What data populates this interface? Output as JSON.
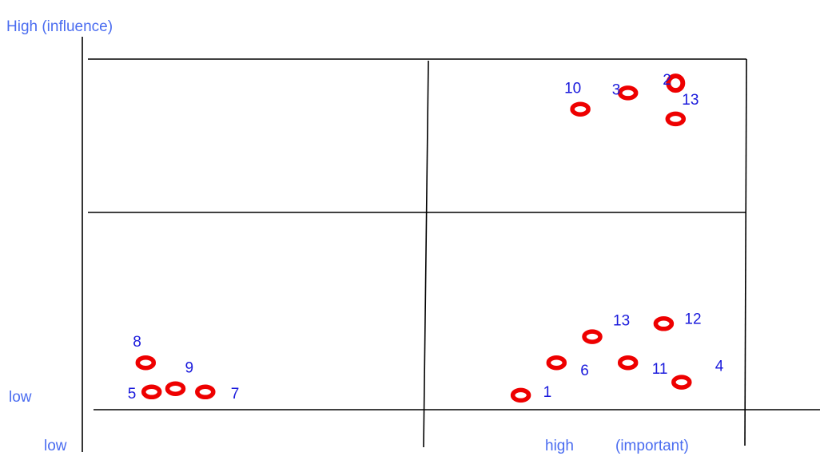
{
  "labels": {
    "y_high": "High (influence)",
    "y_low": "low",
    "x_low": "low",
    "x_high": "high",
    "x_high_note": "(important)"
  },
  "colors": {
    "axis_label": "#4a6cf0",
    "number": "#1a1adc",
    "marker": "#ee0000",
    "line": "#000000"
  },
  "stakeholders": [
    {
      "id": "1",
      "importance": 0.68,
      "influence": 0.02
    },
    {
      "id": "2",
      "importance": 0.94,
      "influence": 0.98
    },
    {
      "id": "3",
      "importance": 0.86,
      "influence": 0.95
    },
    {
      "id": "10",
      "importance": 0.78,
      "influence": 0.9
    },
    {
      "id": "13",
      "importance": 0.94,
      "influence": 0.87
    },
    {
      "id": "13",
      "importance": 0.8,
      "influence": 0.2
    },
    {
      "id": "12",
      "importance": 0.92,
      "influence": 0.24
    },
    {
      "id": "6",
      "importance": 0.74,
      "influence": 0.12
    },
    {
      "id": "11",
      "importance": 0.86,
      "influence": 0.12
    },
    {
      "id": "4",
      "importance": 0.95,
      "influence": 0.06
    },
    {
      "id": "8",
      "importance": 0.05,
      "influence": 0.12
    },
    {
      "id": "9",
      "importance": 0.1,
      "influence": 0.04
    },
    {
      "id": "5",
      "importance": 0.06,
      "influence": 0.03
    },
    {
      "id": "7",
      "importance": 0.15,
      "influence": 0.03
    }
  ]
}
